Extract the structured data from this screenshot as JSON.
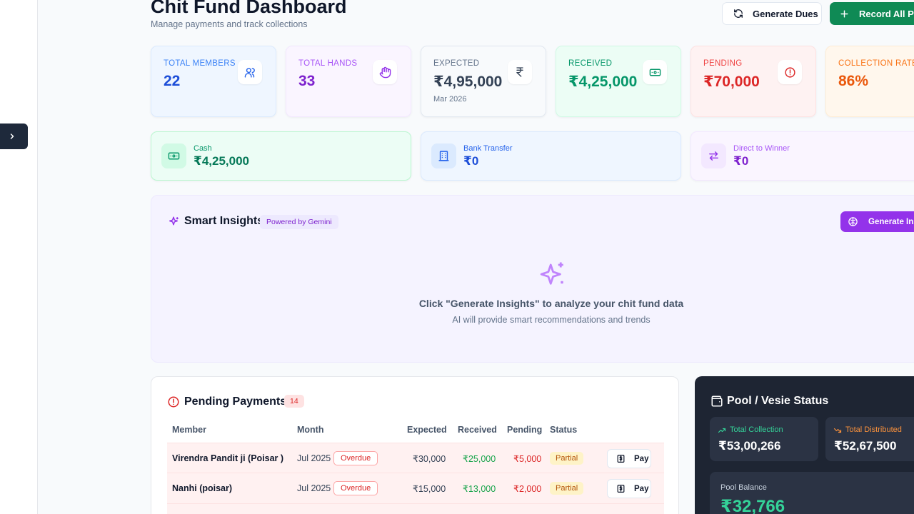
{
  "header": {
    "title": "Chit Fund Dashboard",
    "subtitle": "Manage payments and track collections",
    "generate_dues_label": "Generate Dues",
    "record_all_label": "Record All Pay"
  },
  "stats": [
    {
      "label": "TOTAL MEMBERS",
      "value": "22",
      "icon": "users-icon"
    },
    {
      "label": "TOTAL HANDS",
      "value": "33",
      "icon": "hand-icon"
    },
    {
      "label": "EXPECTED",
      "value": "₹4,95,000",
      "sub": "Mar 2026",
      "icon": "rupee-icon"
    },
    {
      "label": "RECEIVED",
      "value": "₹4,25,000",
      "icon": "banknote-icon"
    },
    {
      "label": "PENDING",
      "value": "₹70,000",
      "icon": "alert-circle-icon"
    },
    {
      "label": "COLLECTION RATE",
      "value": "86%"
    }
  ],
  "methods": [
    {
      "label": "Cash",
      "value": "₹4,25,000",
      "icon": "banknote-icon"
    },
    {
      "label": "Bank Transfer",
      "value": "₹0",
      "icon": "bank-icon"
    },
    {
      "label": "Direct to Winner",
      "value": "₹0",
      "icon": "transfer-icon"
    }
  ],
  "insights": {
    "title": "Smart Insights",
    "badge": "Powered by Gemini",
    "button_label": "Generate Insi",
    "message": "Click \"Generate Insights\" to analyze your chit fund data",
    "hint": "AI will provide smart recommendations and trends"
  },
  "pending_payments": {
    "title": "Pending Payments",
    "count": "14",
    "columns": [
      "Member",
      "Month",
      "Expected",
      "Received",
      "Pending",
      "Status"
    ],
    "rows": [
      {
        "member": "Virendra Pandit ji (Poisar )",
        "month": "Jul 2025",
        "tag": "Overdue",
        "expected": "₹30,000",
        "received": "₹25,000",
        "pending": "₹5,000",
        "status": "Partial",
        "action": "Pay"
      },
      {
        "member": "Nanhi (poisar)",
        "month": "Jul 2025",
        "tag": "Overdue",
        "expected": "₹15,000",
        "received": "₹13,000",
        "pending": "₹2,000",
        "status": "Partial",
        "action": "Pay"
      }
    ]
  },
  "pool": {
    "title": "Pool / Vesie Status",
    "total_collection_label": "Total Collection",
    "total_collection_value": "₹53,00,266",
    "total_distributed_label": "Total Distributed",
    "total_distributed_value": "₹52,67,500",
    "balance_label": "Pool Balance",
    "balance_value": "₹32,766"
  },
  "colors": {
    "primary_green": "#0f8a55",
    "purple_accent": "#9333ea",
    "overdue_red": "#dc2626",
    "pool_bg": "#1e2533"
  }
}
